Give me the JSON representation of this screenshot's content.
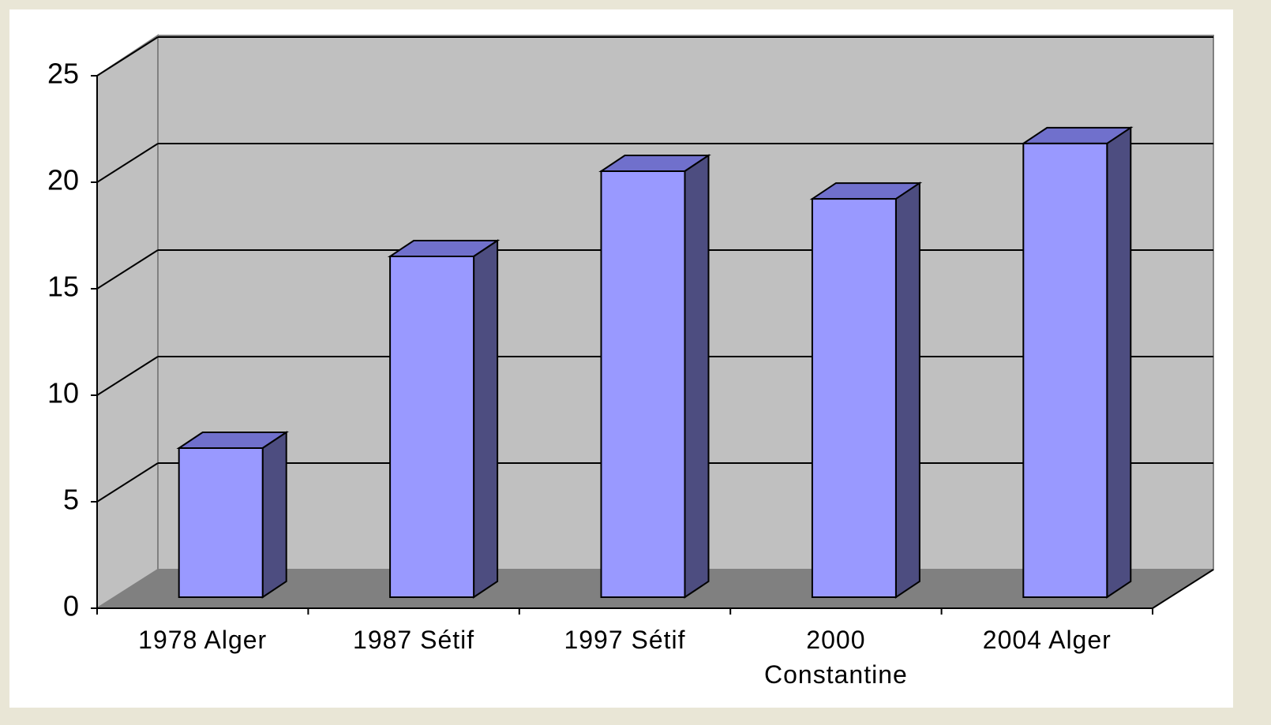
{
  "chart_data": {
    "type": "bar3d",
    "categories": [
      "1978 Alger",
      "1987 Sétif",
      "1997 Sétif",
      "2000 Constantine",
      "2004 Alger"
    ],
    "values": [
      7,
      16,
      20,
      18.7,
      21.3
    ],
    "color": "#9999ff",
    "ylim": [
      0,
      25
    ],
    "yticks": [
      0,
      5,
      10,
      15,
      20,
      25
    ],
    "grid": true
  }
}
